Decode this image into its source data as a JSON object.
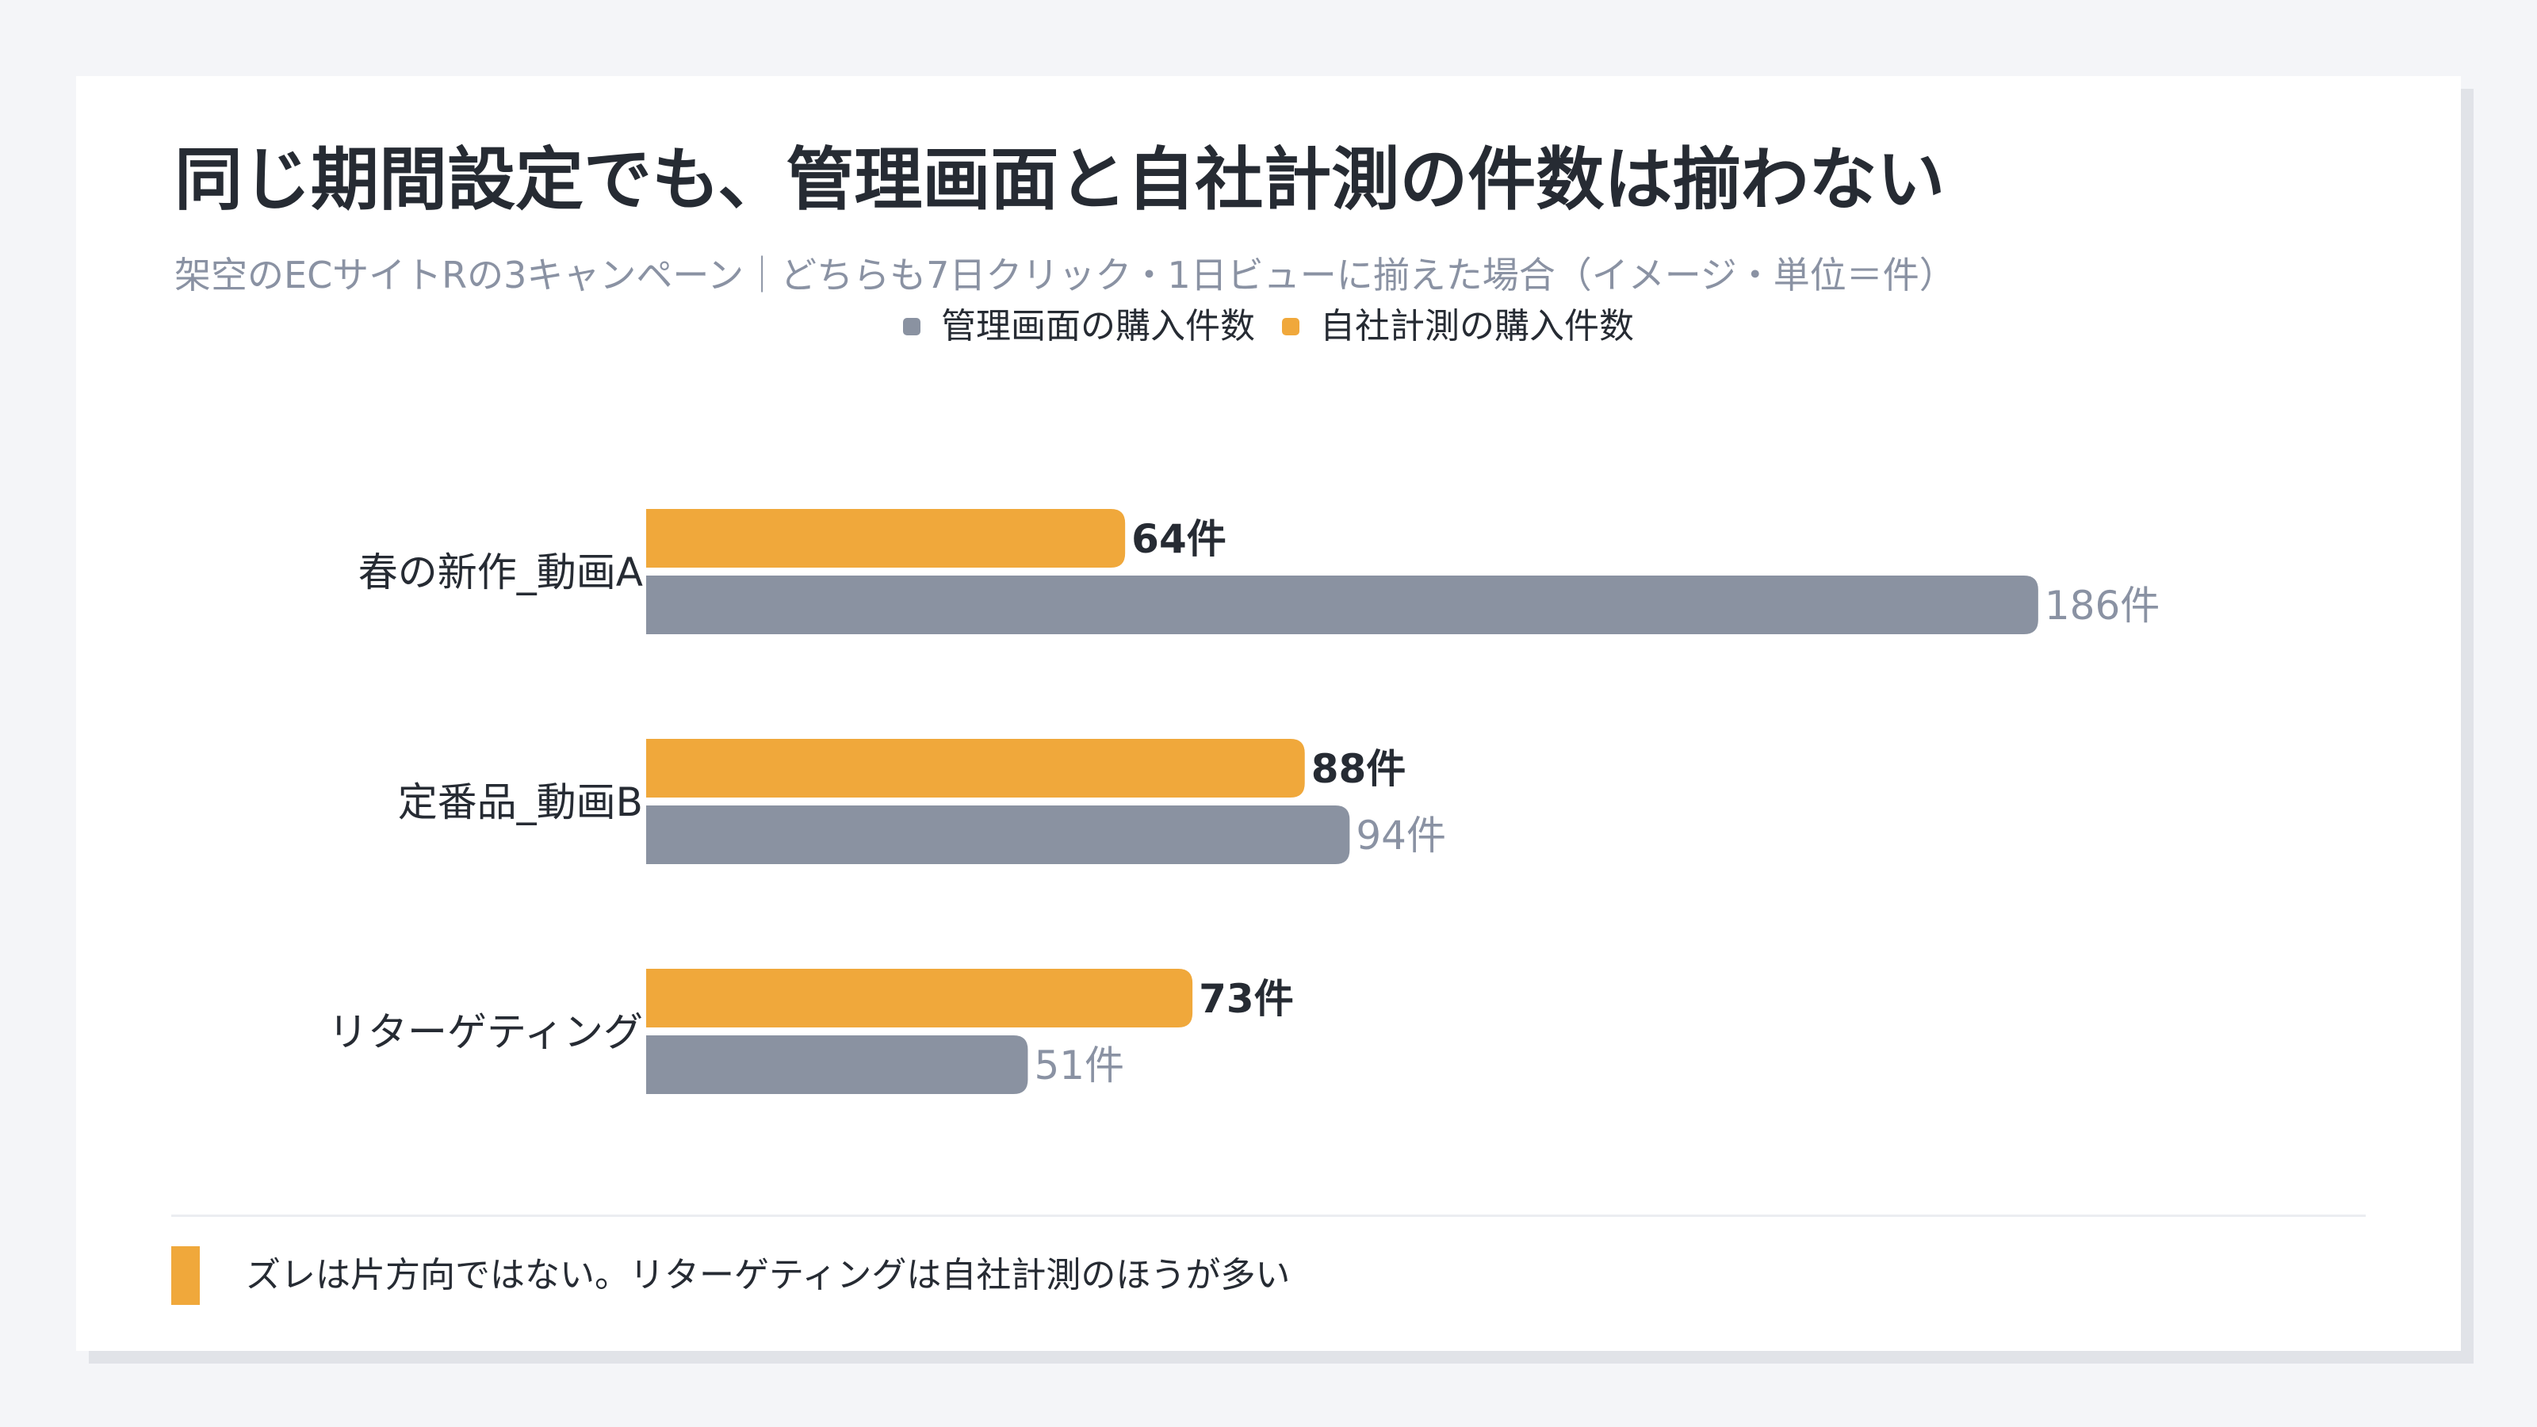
{
  "title": "同じ期間設定でも、管理画面と自社計測の件数は揃わない",
  "subtitle": "架空のECサイトRの3キャンペーン｜どちらも7日クリック・1日ビューに揃えた場合（イメージ・単位＝件）",
  "colors": {
    "admin": "#8a92a1",
    "inhouse": "#f0a83b"
  },
  "chart_data": {
    "type": "bar",
    "orientation": "horizontal",
    "categories": [
      "春の新作_動画A",
      "定番品_動画B",
      "リターゲティング"
    ],
    "series": [
      {
        "name": "自社計測の購入件数",
        "values": [
          64,
          88,
          73
        ]
      },
      {
        "name": "管理画面の購入件数",
        "values": [
          186,
          94,
          51
        ]
      }
    ],
    "value_suffix": "件",
    "legend": [
      "管理画面の購入件数",
      "自社計測の購入件数"
    ],
    "legend_position": "top-center",
    "grid": false
  },
  "footer_note": "ズレは片方向ではない。リターゲティングは自社計測のほうが多い"
}
